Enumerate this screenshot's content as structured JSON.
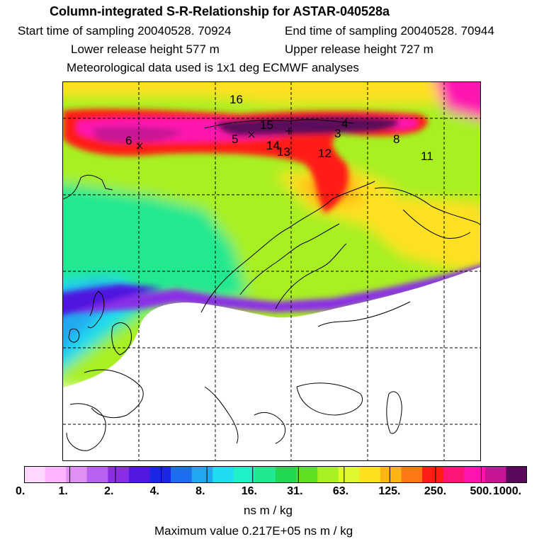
{
  "header": {
    "title": "Column-integrated S-R-Relationship for ASTAR-040528a",
    "start_time": "Start time of sampling 20040528. 70924",
    "end_time": "End time of sampling 20040528. 70944",
    "lower_release": "Lower release height  577 m",
    "upper_release": "Upper release height  727 m",
    "met_data": "Meteorological data used is 1x1 deg ECMWF analyses"
  },
  "map": {
    "trajectory_labels": [
      "16",
      "15",
      "5",
      "6",
      "14",
      "13",
      "12",
      "4",
      "3",
      "8",
      "11"
    ],
    "no_data_color": "#ffffff"
  },
  "legend": {
    "ticks": [
      "0.",
      "1.",
      "2.",
      "4.",
      "8.",
      "16.",
      "31.",
      "63.",
      "125.",
      "250.",
      "500.",
      "1000."
    ],
    "colors": [
      "#ffd8ff",
      "#ffb4ff",
      "#e090f5",
      "#b860f0",
      "#8a2ee6",
      "#5018e0",
      "#1a28e6",
      "#1e6ef0",
      "#20a8f0",
      "#20dcf0",
      "#20f0c8",
      "#20e890",
      "#20d850",
      "#60e020",
      "#a8f020",
      "#e0f830",
      "#ffe020",
      "#ffb414",
      "#ff7814",
      "#ff1e14",
      "#ff1478",
      "#ff14b0",
      "#c81496",
      "#5a0a5a"
    ],
    "units": "ns m / kg",
    "max_value": "Maximum value  0.217E+05 ns m / kg"
  }
}
